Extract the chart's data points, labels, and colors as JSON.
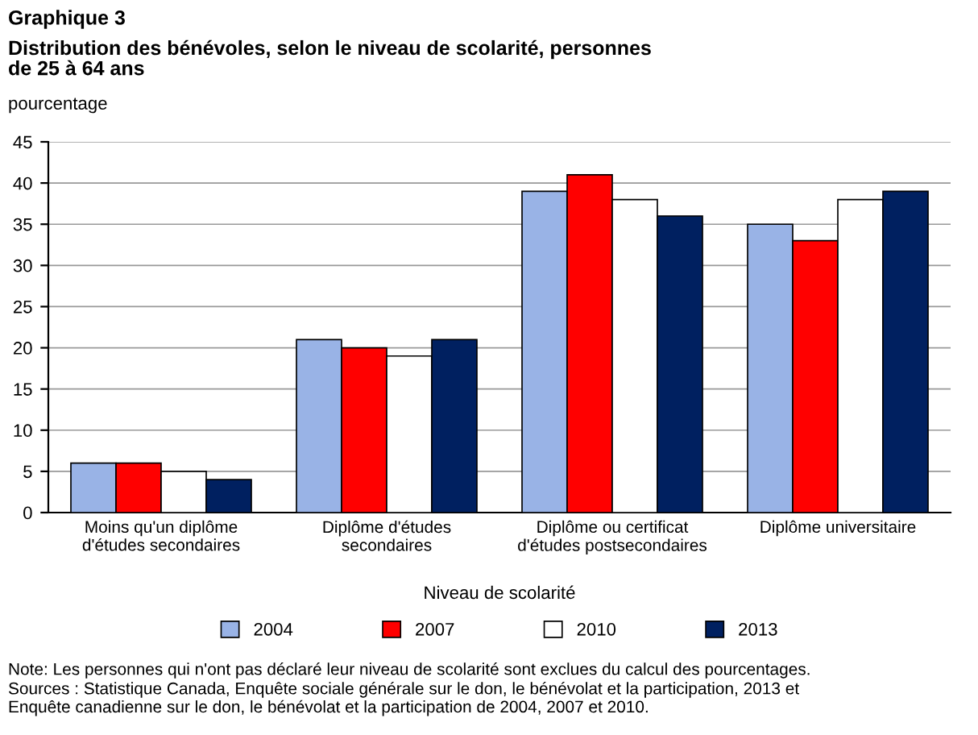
{
  "chart_data": {
    "type": "bar",
    "title": "Graphique 3",
    "subtitle": "Distribution des bénévoles, selon le niveau de scolarité, personnes\nde 25 à 64 ans",
    "ylabel": "pourcentage",
    "xlabel": "Niveau de scolarité",
    "categories": [
      "Moins qu'un diplôme\nd'études secondaires",
      "Diplôme d'études\nsecondaires",
      "Diplôme ou certificat\nd'études postsecondaires",
      "Diplôme universitaire"
    ],
    "series": [
      {
        "name": "2004",
        "color": "#99b3e6",
        "values": [
          6,
          21,
          39,
          35
        ]
      },
      {
        "name": "2007",
        "color": "#ff0000",
        "values": [
          6,
          20,
          41,
          33
        ]
      },
      {
        "name": "2010",
        "color": "#ffffff",
        "values": [
          5,
          19,
          38,
          38
        ]
      },
      {
        "name": "2013",
        "color": "#002060",
        "values": [
          4,
          21,
          36,
          39
        ]
      }
    ],
    "ylim": [
      0,
      45
    ],
    "yticks": [
      0,
      5,
      10,
      15,
      20,
      25,
      30,
      35,
      40,
      45
    ],
    "grid": "y",
    "legend": "bottom",
    "annotations": [
      "Note: Les personnes qui n'ont pas déclaré leur niveau de scolarité sont exclues du calcul des pourcentages.",
      "Sources : Statistique Canada, Enquête sociale générale sur le don, le bénévolat et la participation, 2013 et\nEnquête canadienne sur le don, le bénévolat et la participation de 2004, 2007 et 2010."
    ]
  }
}
